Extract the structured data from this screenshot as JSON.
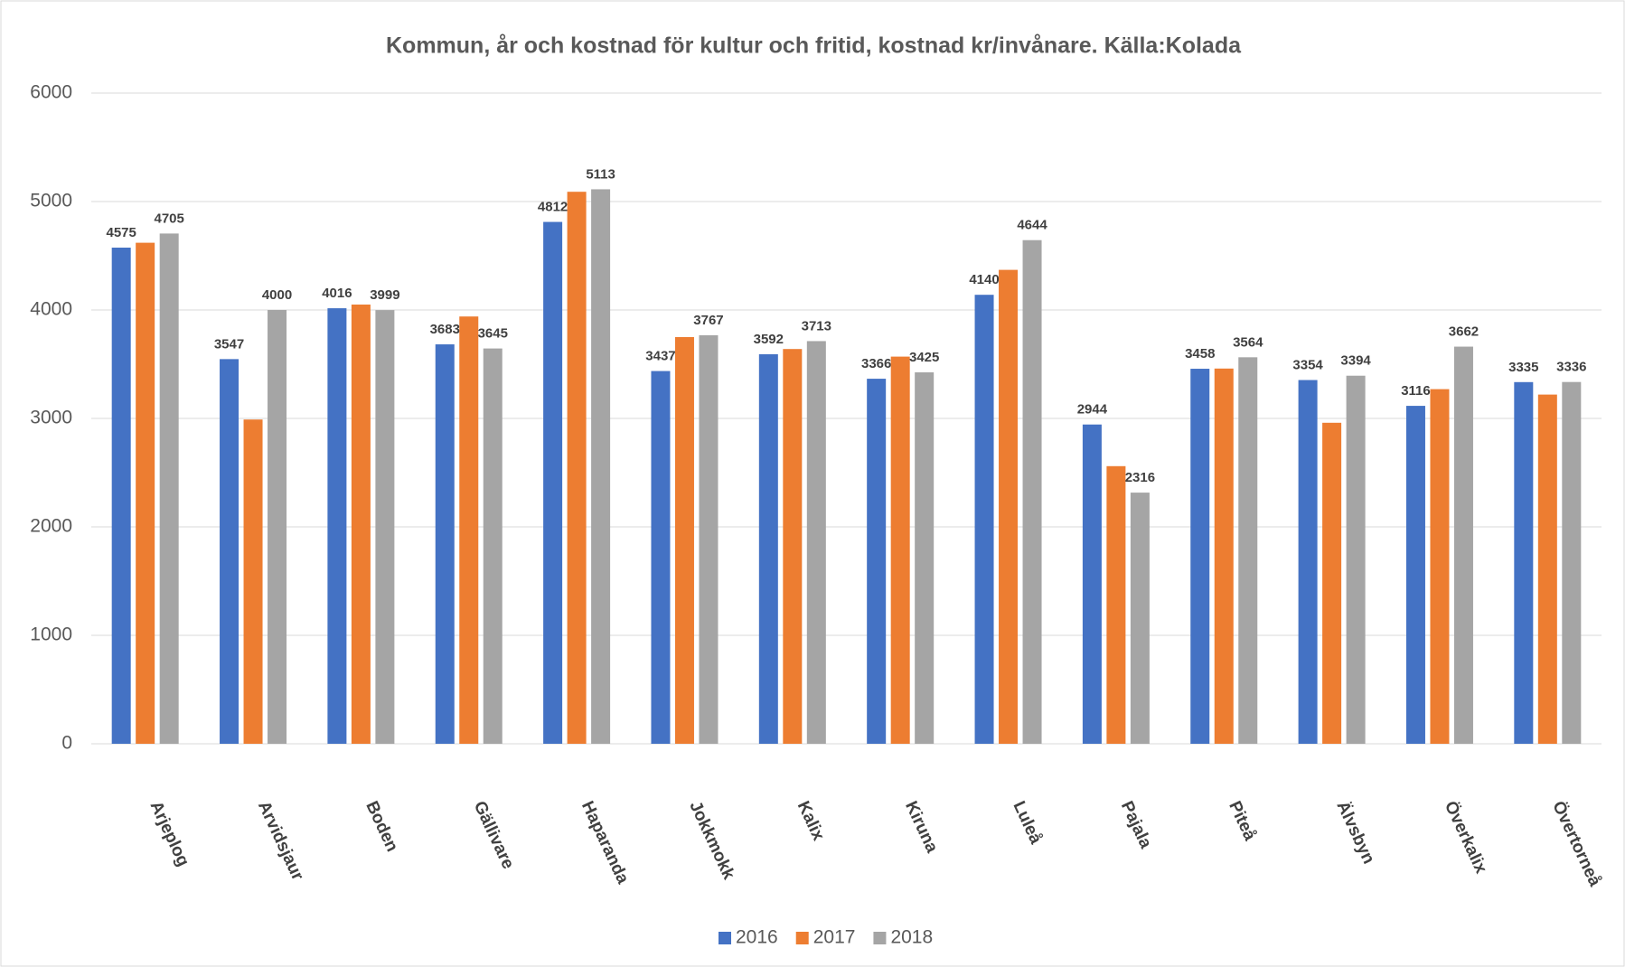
{
  "chart_data": {
    "type": "bar",
    "title": "Kommun, år och kostnad för kultur och fritid, kostnad kr/invånare. Källa:Kolada",
    "categories": [
      "Arjeplog",
      "Arvidsjaur",
      "Boden",
      "Gällivare",
      "Haparanda",
      "Jokkmokk",
      "Kalix",
      "Kiruna",
      "Luleå",
      "Pajala",
      "Piteå",
      "Älvsbyn",
      "Överkalix",
      "Övertorneå"
    ],
    "series": [
      {
        "name": "2016",
        "color": "#4472c4",
        "show_labels": true,
        "values": [
          4575,
          3547,
          4016,
          3683,
          4812,
          3437,
          3592,
          3366,
          4140,
          2944,
          3458,
          3354,
          3116,
          3335
        ]
      },
      {
        "name": "2017",
        "color": "#ed7d31",
        "show_labels": false,
        "values": [
          4620,
          2990,
          4050,
          3940,
          5090,
          3750,
          3640,
          3570,
          4370,
          2560,
          3460,
          2960,
          3270,
          3220
        ]
      },
      {
        "name": "2018",
        "color": "#a5a5a5",
        "show_labels": true,
        "values": [
          4705,
          4000,
          3999,
          3645,
          5113,
          3767,
          3713,
          3425,
          4644,
          2316,
          3564,
          3394,
          3662,
          3336
        ]
      }
    ],
    "ylim": [
      0,
      6000
    ],
    "yticks": [
      0,
      1000,
      2000,
      3000,
      4000,
      5000,
      6000
    ],
    "grid": true,
    "legend": "bottom"
  }
}
